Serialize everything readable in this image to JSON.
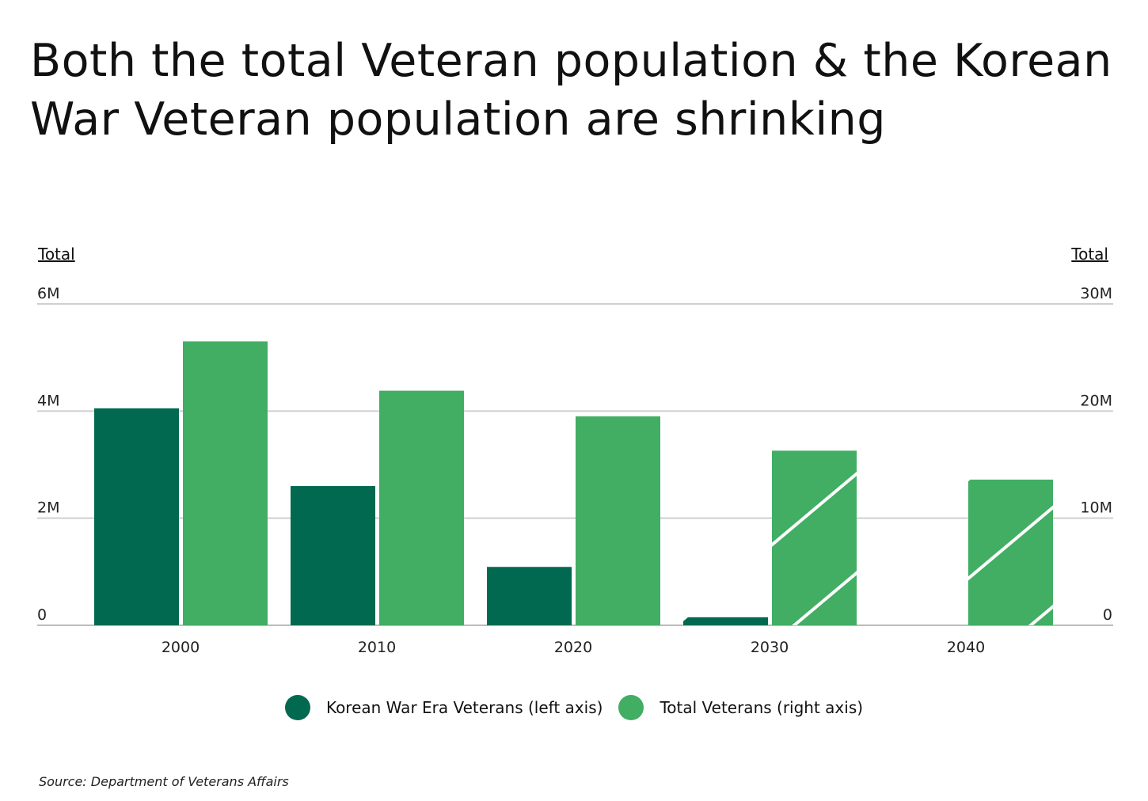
{
  "title": "Both the total Veteran population & the Korean War Veteran population are shrinking",
  "source": "Source:  Department of Veterans Affairs",
  "chart_data": {
    "type": "bar",
    "title": "Both the total Veteran population & the Korean War Veteran population are shrinking",
    "categories": [
      "2000",
      "2010",
      "2020",
      "2030",
      "2040"
    ],
    "projected": [
      false,
      false,
      false,
      true,
      true
    ],
    "series": [
      {
        "name": "Korean War Era Veterans (left axis)",
        "axis": "left",
        "color": "#006950",
        "values": [
          4.05,
          2.6,
          1.09,
          0.15,
          0
        ]
      },
      {
        "name": "Total Veterans (right axis)",
        "axis": "right",
        "color": "#41AE63",
        "values": [
          26.5,
          21.9,
          19.5,
          16.3,
          13.6
        ]
      }
    ],
    "left_axis": {
      "label": "Total",
      "ylim": [
        0,
        6
      ],
      "ticks": [
        0,
        2,
        4,
        6
      ],
      "tick_labels": [
        "0",
        "2M",
        "4M",
        "6M"
      ]
    },
    "right_axis": {
      "label": "Total",
      "ylim": [
        0,
        30
      ],
      "ticks": [
        0,
        10,
        20,
        30
      ],
      "tick_labels": [
        "0",
        "10M",
        "20M",
        "30M"
      ]
    },
    "grid": true,
    "legend_position": "bottom"
  }
}
